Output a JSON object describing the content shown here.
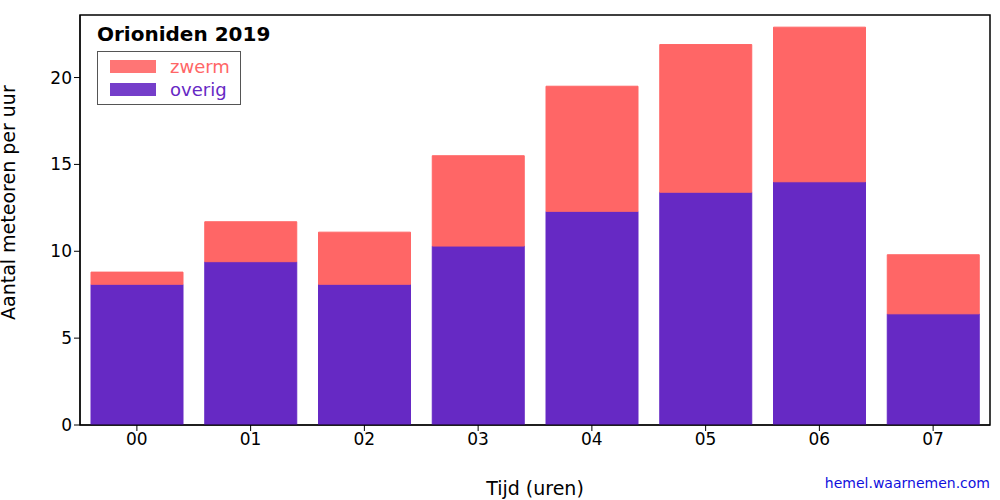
{
  "chart_data": {
    "type": "bar",
    "title": "Orioniden 2019",
    "x_label": "Tijd (uren)",
    "y_label": "Aantal meteoren per uur",
    "annotation": "hemel.waarnemen.com",
    "categories": [
      "00",
      "01",
      "02",
      "03",
      "04",
      "05",
      "06",
      "07"
    ],
    "series": [
      {
        "name": "zwerm",
        "color": "#ff6666",
        "values": [
          0.7,
          2.3,
          3.0,
          5.2,
          7.2,
          8.5,
          8.9,
          3.4
        ]
      },
      {
        "name": "overig",
        "color": "#6629c4",
        "values": [
          8.1,
          9.4,
          8.1,
          10.3,
          12.3,
          13.4,
          14.0,
          6.4
        ]
      }
    ],
    "stacked": true,
    "ylim": [
      0,
      23.6
    ],
    "yticks": [
      0,
      5,
      10,
      15,
      20
    ],
    "legend": "upper left",
    "grid": false
  }
}
